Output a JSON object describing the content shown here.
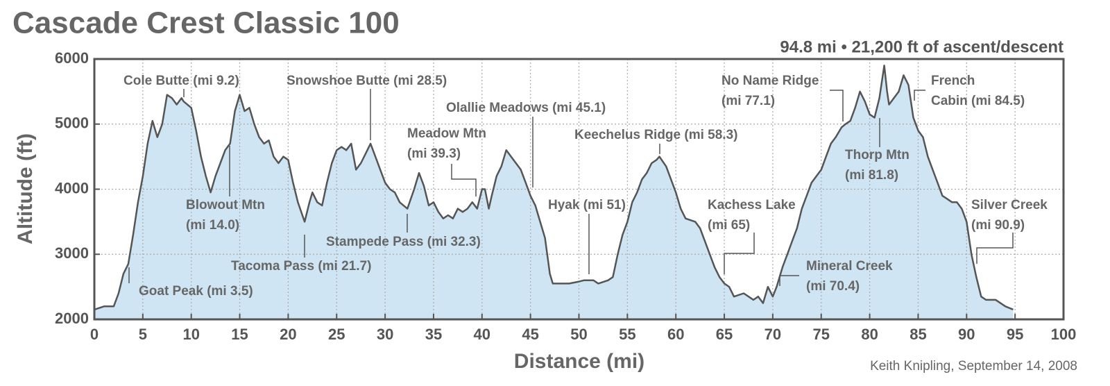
{
  "chart_data": {
    "type": "area",
    "title": "Cascade Crest Classic 100",
    "subtitle": "94.8 mi • 21,200 ft of ascent/descent",
    "xlabel": "Distance  (mi)",
    "ylabel": "Altitude  (ft)",
    "credit": "Keith Knipling, September 14, 2008",
    "xlim": [
      0,
      100
    ],
    "ylim": [
      2000,
      6000
    ],
    "xticks": [
      0,
      5,
      10,
      15,
      20,
      25,
      30,
      35,
      40,
      45,
      50,
      55,
      60,
      65,
      70,
      75,
      80,
      85,
      90,
      95,
      100
    ],
    "yticks": [
      2000,
      3000,
      4000,
      5000,
      6000
    ],
    "grid": true,
    "fill_color": "#cfe5f3",
    "line_color": "#555555",
    "x": [
      0,
      1,
      2,
      2.5,
      3,
      3.5,
      4,
      4.5,
      5,
      5.5,
      6,
      6.5,
      7,
      7.5,
      8,
      8.5,
      9,
      9.2,
      10,
      10.5,
      11,
      11.5,
      12,
      12.5,
      13,
      13.5,
      14,
      14.5,
      15,
      15.5,
      16,
      16.5,
      17,
      17.5,
      18,
      18.5,
      19,
      19.5,
      20,
      20.5,
      21,
      21.7,
      22.2,
      22.5,
      23,
      23.5,
      24,
      24.5,
      25,
      25.5,
      26,
      26.5,
      27,
      27.5,
      28,
      28.5,
      29,
      29.5,
      30,
      30.5,
      31,
      31.5,
      32.3,
      33,
      33.5,
      34,
      34.5,
      35,
      35.5,
      36,
      36.5,
      37,
      37.5,
      38,
      38.5,
      39,
      39.5,
      40,
      40.3,
      40.7,
      41,
      41.5,
      42,
      42.5,
      43,
      43.5,
      44,
      44.5,
      45,
      45.5,
      46,
      46.5,
      47,
      47.3,
      48,
      49,
      50,
      50.5,
      51,
      51.5,
      52,
      53,
      53.5,
      54,
      54.5,
      55,
      55.5,
      56,
      56.5,
      57,
      57.5,
      58,
      58.3,
      59,
      59.5,
      60,
      60.5,
      61,
      62,
      62.5,
      63,
      63.5,
      64,
      64.5,
      65,
      65.5,
      66,
      67,
      67.5,
      68,
      68.5,
      69,
      69.5,
      70,
      70.4,
      71,
      71.5,
      72,
      72.5,
      73,
      73.5,
      74,
      75,
      75.5,
      76,
      76.5,
      77.1,
      77.5,
      78,
      78.5,
      79,
      79.5,
      80,
      80.5,
      81,
      81.5,
      81.8,
      82,
      82.5,
      83,
      83.5,
      84,
      84.5,
      85,
      85.5,
      86,
      86.5,
      87,
      87.5,
      88,
      88.5,
      89,
      89.5,
      90,
      90.5,
      91,
      91.5,
      92,
      93,
      94,
      94.8
    ],
    "y": [
      2150,
      2200,
      2200,
      2400,
      2700,
      2850,
      3300,
      3800,
      4200,
      4700,
      5050,
      4800,
      5000,
      5450,
      5400,
      5300,
      5400,
      5350,
      5250,
      4900,
      4500,
      4200,
      3950,
      4200,
      4400,
      4600,
      4700,
      5200,
      5450,
      5200,
      5250,
      5000,
      4800,
      4700,
      4750,
      4500,
      4400,
      4500,
      4450,
      4100,
      3800,
      3500,
      3800,
      3950,
      3800,
      3750,
      4100,
      4400,
      4600,
      4650,
      4600,
      4700,
      4300,
      4400,
      4550,
      4700,
      4500,
      4300,
      4100,
      4000,
      3950,
      3800,
      3700,
      4000,
      4250,
      4050,
      3750,
      3800,
      3650,
      3550,
      3600,
      3550,
      3700,
      3650,
      3700,
      3800,
      3700,
      4000,
      4000,
      3700,
      3900,
      4200,
      4350,
      4600,
      4500,
      4400,
      4300,
      4100,
      3900,
      3750,
      3500,
      3250,
      2700,
      2550,
      2550,
      2550,
      2580,
      2600,
      2600,
      2600,
      2550,
      2600,
      2650,
      3000,
      3300,
      3500,
      3800,
      3950,
      4150,
      4250,
      4400,
      4450,
      4500,
      4350,
      4150,
      3950,
      3700,
      3550,
      3500,
      3400,
      3200,
      3000,
      2800,
      2650,
      2550,
      2500,
      2350,
      2400,
      2350,
      2300,
      2350,
      2250,
      2500,
      2350,
      2500,
      2800,
      3000,
      3200,
      3400,
      3700,
      3900,
      4100,
      4300,
      4500,
      4700,
      4800,
      4950,
      5000,
      5050,
      5250,
      5500,
      5350,
      5150,
      5100,
      5400,
      5900,
      5500,
      5300,
      5400,
      5500,
      5750,
      5600,
      5100,
      4900,
      4800,
      4500,
      4300,
      4100,
      3900,
      3850,
      3800,
      3800,
      3700,
      3500,
      3000,
      2650,
      2350,
      2300,
      2300,
      2200,
      2150
    ],
    "annotations": [
      {
        "text": [
          "Cole Butte (mi 9.2)"
        ]
      },
      {
        "text": [
          "Snowshoe Butte (mi 28.5)"
        ]
      },
      {
        "text": [
          "Olallie Meadows (mi 45.1)"
        ]
      },
      {
        "text": [
          "Meadow Mtn",
          "(mi 39.3)"
        ]
      },
      {
        "text": [
          "Keechelus Ridge (mi 58.3)"
        ]
      },
      {
        "text": [
          "No Name Ridge",
          "(mi 77.1)"
        ]
      },
      {
        "text": [
          "French",
          "Cabin (mi 84.5)"
        ]
      },
      {
        "text": [
          "Thorp Mtn",
          "(mi 81.8)"
        ]
      },
      {
        "text": [
          "Blowout Mtn",
          "(mi 14.0)"
        ]
      },
      {
        "text": [
          "Tacoma Pass (mi 21.7)"
        ]
      },
      {
        "text": [
          "Stampede Pass (mi 32.3)"
        ]
      },
      {
        "text": [
          "Hyak (mi 51)"
        ]
      },
      {
        "text": [
          "Kachess Lake",
          "(mi 65)"
        ]
      },
      {
        "text": [
          "Mineral Creek",
          "(mi 70.4)"
        ]
      },
      {
        "text": [
          "Goat Peak (mi 3.5)"
        ]
      },
      {
        "text": [
          "Silver Creek",
          "(mi 90.9)"
        ]
      }
    ]
  }
}
